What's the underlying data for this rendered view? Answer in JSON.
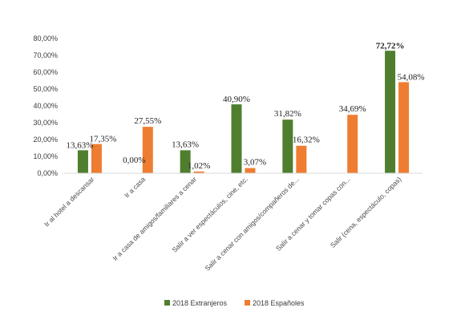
{
  "chart_data": {
    "type": "bar",
    "categories": [
      "Ir al hotel a descansar",
      "Ir a casa",
      "Ir a casa de amigos/familiares a cenar",
      "Salir a ver espectáculos, cine, etc.",
      "Salir a cenar con amigos/compañeros de...",
      "Salir a cenar y tomar copas con...",
      "Salir (cena, espectáculo, copas)"
    ],
    "series": [
      {
        "name": "2018 Extranjeros",
        "color": "#4f7f2e",
        "values": [
          13.63,
          0,
          13.63,
          40.9,
          31.82,
          null,
          72.72
        ],
        "labels": [
          "13,63%",
          "0,00%",
          "13,63%",
          "40,90%",
          "31,82%",
          "",
          "72,72%"
        ]
      },
      {
        "name": "2018 Españoles",
        "color": "#ee7d31",
        "values": [
          17.35,
          27.55,
          1.02,
          3.07,
          16.32,
          34.69,
          54.08
        ],
        "labels": [
          "17,35%",
          "27,55%",
          "1,02%",
          "3,07%",
          "16,32%",
          "34,69%",
          "54,08%"
        ]
      }
    ],
    "ylim": [
      0,
      80
    ],
    "yticks": [
      "0,00%",
      "10,00%",
      "20,00%",
      "30,00%",
      "40,00%",
      "50,00%",
      "60,00%",
      "70,00%",
      "80,00%"
    ],
    "legend_position": "bottom",
    "grid": false
  }
}
